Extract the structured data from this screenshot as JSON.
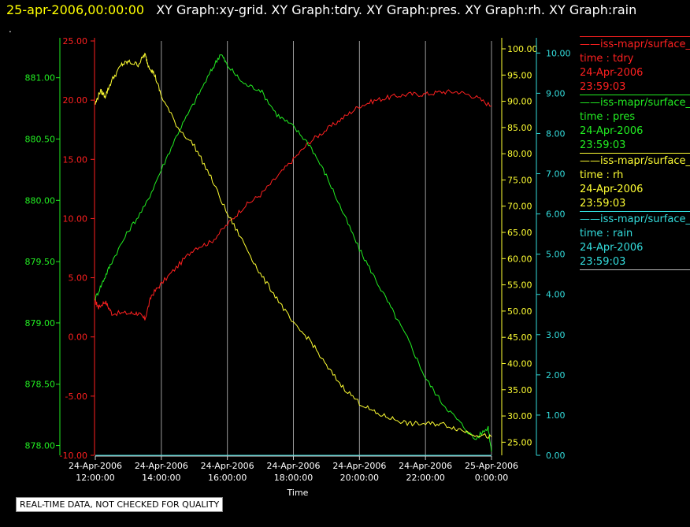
{
  "header": {
    "date": "25-apr-2006,00:00:00",
    "titles": "XY Graph:xy-grid.  XY Graph:tdry.  XY Graph:pres.  XY Graph:rh.  XY Graph:rain"
  },
  "dot": ".",
  "note": "REAL-TIME DATA, NOT CHECKED FOR QUALITY",
  "legend": [
    {
      "name": "iss-mapr/surface_",
      "var": "time : tdry",
      "date": "24-Apr-2006",
      "time": "23:59:03",
      "color": "#ff2020"
    },
    {
      "name": "iss-mapr/surface_",
      "var": "time : pres",
      "date": "24-Apr-2006",
      "time": "23:59:03",
      "color": "#22ee22"
    },
    {
      "name": "iss-mapr/surface_",
      "var": "time : rh",
      "date": "24-Apr-2006",
      "time": "23:59:03",
      "color": "#ffff33"
    },
    {
      "name": "iss-mapr/surface_",
      "var": "time : rain",
      "date": "24-Apr-2006",
      "time": "23:59:03",
      "color": "#33dddd"
    }
  ],
  "chart_data": {
    "type": "line",
    "xlabel": "Time",
    "x_ticks": [
      {
        "hour": 12,
        "date": "24-Apr-2006",
        "time": "12:00:00"
      },
      {
        "hour": 14,
        "date": "24-Apr-2006",
        "time": "14:00:00"
      },
      {
        "hour": 16,
        "date": "24-Apr-2006",
        "time": "16:00:00"
      },
      {
        "hour": 18,
        "date": "24-Apr-2006",
        "time": "18:00:00"
      },
      {
        "hour": 20,
        "date": "24-Apr-2006",
        "time": "20:00:00"
      },
      {
        "hour": 22,
        "date": "24-Apr-2006",
        "time": "22:00:00"
      },
      {
        "hour": 24,
        "date": "25-Apr-2006",
        "time": "0:00:00"
      }
    ],
    "xlim": [
      12,
      24
    ],
    "grid": "vertical",
    "axes": {
      "pres": {
        "color": "#22ee22",
        "range": [
          877.92,
          881.3
        ],
        "ticks": [
          "878.00",
          "878.50",
          "879.00",
          "879.50",
          "880.00",
          "880.50",
          "881.00"
        ]
      },
      "tdry": {
        "color": "#ff2020",
        "range": [
          -10,
          25
        ],
        "ticks": [
          "-10.00",
          "-5.00",
          "0.00",
          "5.00",
          "10.00",
          "15.00",
          "20.00",
          "25.00"
        ]
      },
      "rh": {
        "color": "#ffff33",
        "range": [
          22.5,
          101.5
        ],
        "ticks": [
          "25.00",
          "30.00",
          "35.00",
          "40.00",
          "45.00",
          "50.00",
          "55.00",
          "60.00",
          "65.00",
          "70.00",
          "75.00",
          "80.00",
          "85.00",
          "90.00",
          "95.00",
          "100.00"
        ]
      },
      "rain": {
        "color": "#33dddd",
        "range": [
          0,
          10.3
        ],
        "ticks": [
          "0.00",
          "1.00",
          "2.00",
          "3.00",
          "4.00",
          "5.00",
          "6.00",
          "7.00",
          "8.00",
          "9.00",
          "10.00"
        ]
      }
    },
    "series": [
      {
        "name": "time : tdry",
        "axis": "tdry",
        "color": "#ff2020",
        "x": [
          12.0,
          12.1,
          12.3,
          12.5,
          13.0,
          13.3,
          13.5,
          13.7,
          14.0,
          14.5,
          15.0,
          15.5,
          16.0,
          16.5,
          17.0,
          17.5,
          18.0,
          18.5,
          19.0,
          19.5,
          20.0,
          20.5,
          21.0,
          21.5,
          22.0,
          22.5,
          23.0,
          23.5,
          24.0
        ],
        "y": [
          3.0,
          2.5,
          3.0,
          2.0,
          2.0,
          2.0,
          1.5,
          3.5,
          4.5,
          6.0,
          7.5,
          8.0,
          9.5,
          11.0,
          12.0,
          13.5,
          15.0,
          16.5,
          17.5,
          18.5,
          19.5,
          20.0,
          20.3,
          20.5,
          20.5,
          20.7,
          20.7,
          20.3,
          19.5
        ]
      },
      {
        "name": "time : pres",
        "axis": "pres",
        "color": "#22ee22",
        "x": [
          12.0,
          12.25,
          12.5,
          13.0,
          13.5,
          14.0,
          14.5,
          15.0,
          15.5,
          15.8,
          16.0,
          16.5,
          17.0,
          17.5,
          18.0,
          18.5,
          19.0,
          19.5,
          20.0,
          20.5,
          21.0,
          21.5,
          22.0,
          22.5,
          23.0,
          23.5,
          23.9,
          24.0
        ],
        "y": [
          879.2,
          879.35,
          879.5,
          879.75,
          879.95,
          880.25,
          880.55,
          880.8,
          881.05,
          881.2,
          881.1,
          880.95,
          880.9,
          880.7,
          880.6,
          880.45,
          880.2,
          879.9,
          879.6,
          879.35,
          879.1,
          878.85,
          878.55,
          878.35,
          878.2,
          878.05,
          878.15,
          877.95
        ]
      },
      {
        "name": "time : rh",
        "axis": "rh",
        "color": "#ffff33",
        "x": [
          12.0,
          12.15,
          12.3,
          12.5,
          12.8,
          13.0,
          13.3,
          13.5,
          13.6,
          13.8,
          14.0,
          14.5,
          15.0,
          15.5,
          16.0,
          16.5,
          17.0,
          17.5,
          18.0,
          18.5,
          19.0,
          19.5,
          20.0,
          20.5,
          21.0,
          21.5,
          22.0,
          22.5,
          23.0,
          23.5,
          24.0
        ],
        "y": [
          89.5,
          92.0,
          91.0,
          94.0,
          97.0,
          97.5,
          97.0,
          99.0,
          97.0,
          95.0,
          91.0,
          85.0,
          81.5,
          75.5,
          68.5,
          63.0,
          57.0,
          52.5,
          47.5,
          44.5,
          39.5,
          35.5,
          32.5,
          30.5,
          29.5,
          28.5,
          28.5,
          28.5,
          27.5,
          26.5,
          26.0
        ]
      },
      {
        "name": "time : rain",
        "axis": "rain",
        "color": "#33dddd",
        "x": [
          12.0,
          24.0
        ],
        "y": [
          0.0,
          0.0
        ]
      }
    ]
  }
}
